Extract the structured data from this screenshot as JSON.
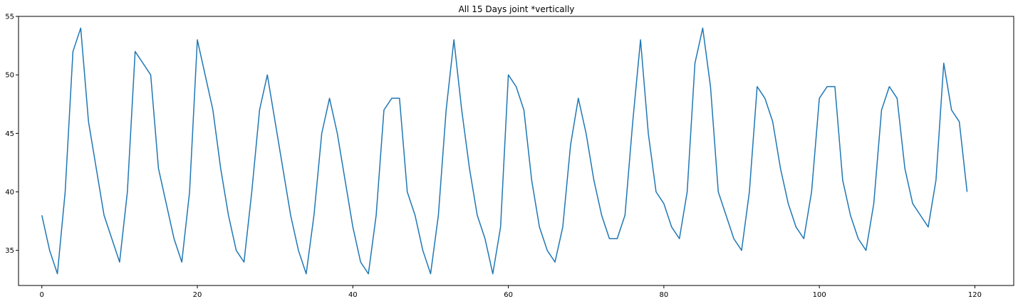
{
  "chart_data": {
    "type": "line",
    "title": "All 15 Days joint *vertically",
    "xlabel": "",
    "ylabel": "",
    "xlim": [
      -3,
      125
    ],
    "ylim": [
      32,
      55
    ],
    "xticks": [
      0,
      20,
      40,
      60,
      80,
      100,
      120
    ],
    "yticks": [
      35,
      40,
      45,
      50,
      55
    ],
    "grid": false,
    "series": [
      {
        "color": "#1f77b4",
        "x": [
          0,
          1,
          2,
          3,
          4,
          5,
          6,
          7,
          8,
          9,
          10,
          11,
          12,
          13,
          14,
          15,
          16,
          17,
          18,
          19,
          20,
          21,
          22,
          23,
          24,
          25,
          26,
          27,
          28,
          29,
          30,
          31,
          32,
          33,
          34,
          35,
          36,
          37,
          38,
          39,
          40,
          41,
          42,
          43,
          44,
          45,
          46,
          47,
          48,
          49,
          50,
          51,
          52,
          53,
          54,
          55,
          56,
          57,
          58,
          59,
          60,
          61,
          62,
          63,
          64,
          65,
          66,
          67,
          68,
          69,
          70,
          71,
          72,
          73,
          74,
          75,
          76,
          77,
          78,
          79,
          80,
          81,
          82,
          83,
          84,
          85,
          86,
          87,
          88,
          89,
          90,
          91,
          92,
          93,
          94,
          95,
          96,
          97,
          98,
          99,
          100,
          101,
          102,
          103,
          104,
          105,
          106,
          107,
          108,
          109,
          110,
          111,
          112,
          113,
          114,
          115,
          116,
          117,
          118,
          119
        ],
        "y": [
          38,
          35,
          33,
          40,
          52,
          54,
          46,
          42,
          38,
          36,
          34,
          40,
          52,
          51,
          50,
          42,
          39,
          36,
          34,
          40,
          53,
          50,
          47,
          42,
          38,
          35,
          34,
          40,
          47,
          50,
          46,
          42,
          38,
          35,
          33,
          38,
          45,
          48,
          45,
          41,
          37,
          34,
          33,
          38,
          47,
          48,
          48,
          40,
          38,
          35,
          33,
          38,
          47,
          53,
          47,
          42,
          38,
          36,
          33,
          37,
          50,
          49,
          47,
          41,
          37,
          35,
          34,
          37,
          44,
          48,
          45,
          41,
          38,
          36,
          36,
          38,
          46,
          53,
          45,
          40,
          39,
          37,
          36,
          40,
          51,
          54,
          49,
          40,
          38,
          36,
          35,
          40,
          49,
          48,
          46,
          42,
          39,
          37,
          36,
          40,
          48,
          49,
          49,
          41,
          38,
          36,
          35,
          39,
          47,
          49,
          48,
          42,
          39,
          38,
          37,
          41,
          51,
          47,
          46,
          40
        ]
      }
    ]
  }
}
